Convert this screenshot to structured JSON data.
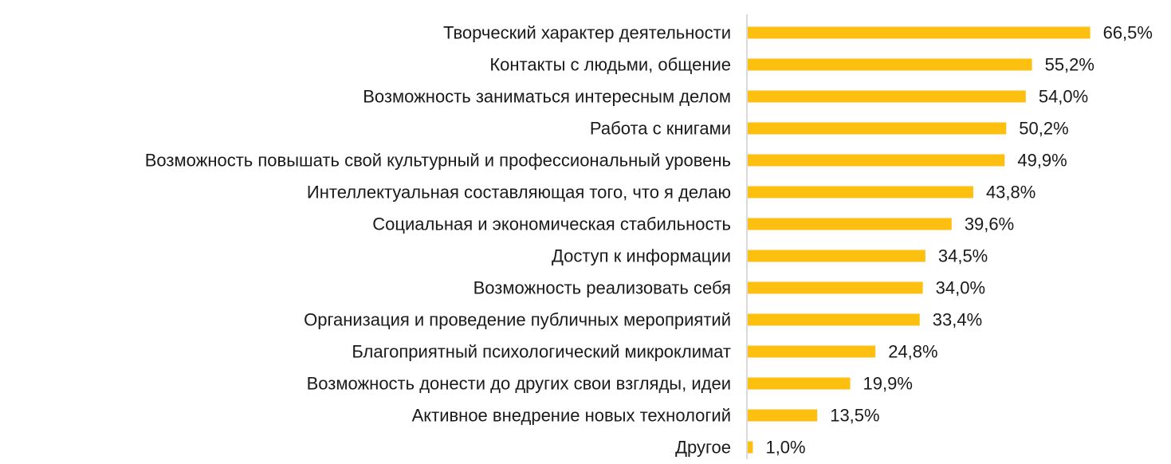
{
  "chart_data": {
    "type": "bar",
    "orientation": "horizontal",
    "title": "",
    "xlabel": "",
    "ylabel": "",
    "categories": [
      "Творческий характер деятельности",
      "Контакты с людьми, общение",
      "Возможность заниматься интересным делом",
      "Работа с книгами",
      "Возможность повышать свой культурный и профессиональный уровень",
      "Интеллектуальная составляющая того, что я делаю",
      "Социальная и экономическая стабильность",
      "Доступ к информации",
      "Возможность реализовать себя",
      "Организация и проведение публичных мероприятий",
      "Благоприятный психологический микроклимат",
      "Возможность донести до других свои взгляды, идеи",
      "Активное внедрение новых технологий",
      "Другое"
    ],
    "values": [
      66.5,
      55.2,
      54.0,
      50.2,
      49.9,
      43.8,
      39.6,
      34.5,
      34.0,
      33.4,
      24.8,
      19.9,
      13.5,
      1.0
    ],
    "value_labels": [
      "66,5%",
      "55,2%",
      "54,0%",
      "50,2%",
      "49,9%",
      "43,8%",
      "39,6%",
      "34,5%",
      "34,0%",
      "33,4%",
      "24,8%",
      "19,9%",
      "13,5%",
      "1,0%"
    ],
    "xlim": [
      0,
      100
    ],
    "grid": false,
    "legend": "none",
    "colors": {
      "bar": "#FDC010",
      "axis": "#d9d9d9",
      "text": "#1a1a1a"
    }
  }
}
